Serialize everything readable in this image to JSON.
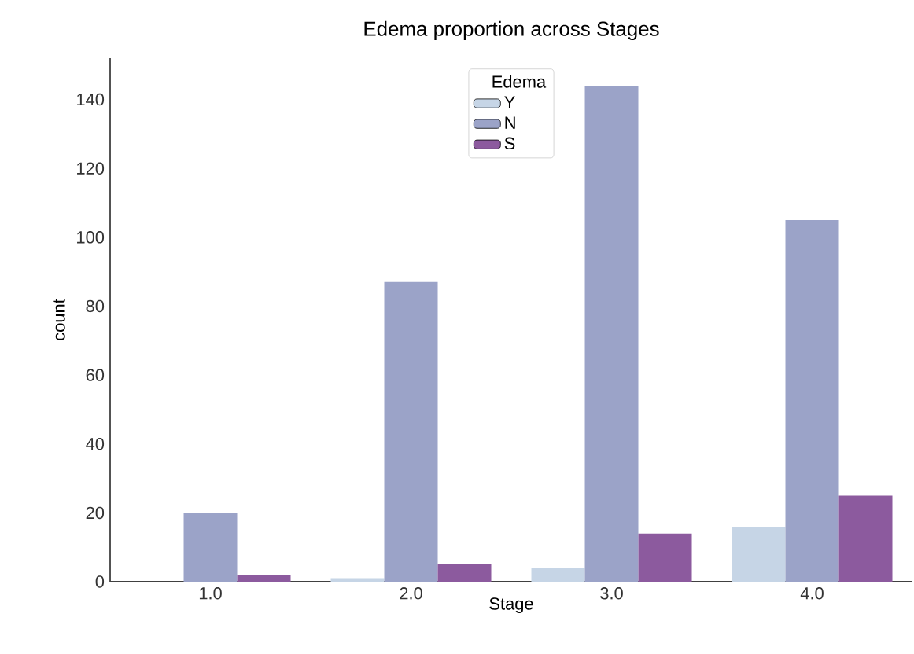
{
  "chart_data": {
    "type": "bar",
    "title": "Edema proportion across Stages",
    "xlabel": "Stage",
    "ylabel": "count",
    "legend_title": "Edema",
    "legend": "top",
    "categories": [
      "1.0",
      "2.0",
      "3.0",
      "4.0"
    ],
    "series": [
      {
        "name": "Y",
        "color": "#c6d5e6",
        "values": [
          null,
          1,
          4,
          16
        ]
      },
      {
        "name": "N",
        "color": "#9ba3c8",
        "values": [
          20,
          87,
          144,
          105
        ]
      },
      {
        "name": "S",
        "color": "#8c5a9e",
        "values": [
          2,
          5,
          14,
          25
        ]
      }
    ],
    "ylim": [
      0,
      152
    ],
    "yticks": [
      0,
      20,
      40,
      60,
      80,
      100,
      120,
      140
    ],
    "grid": false
  }
}
